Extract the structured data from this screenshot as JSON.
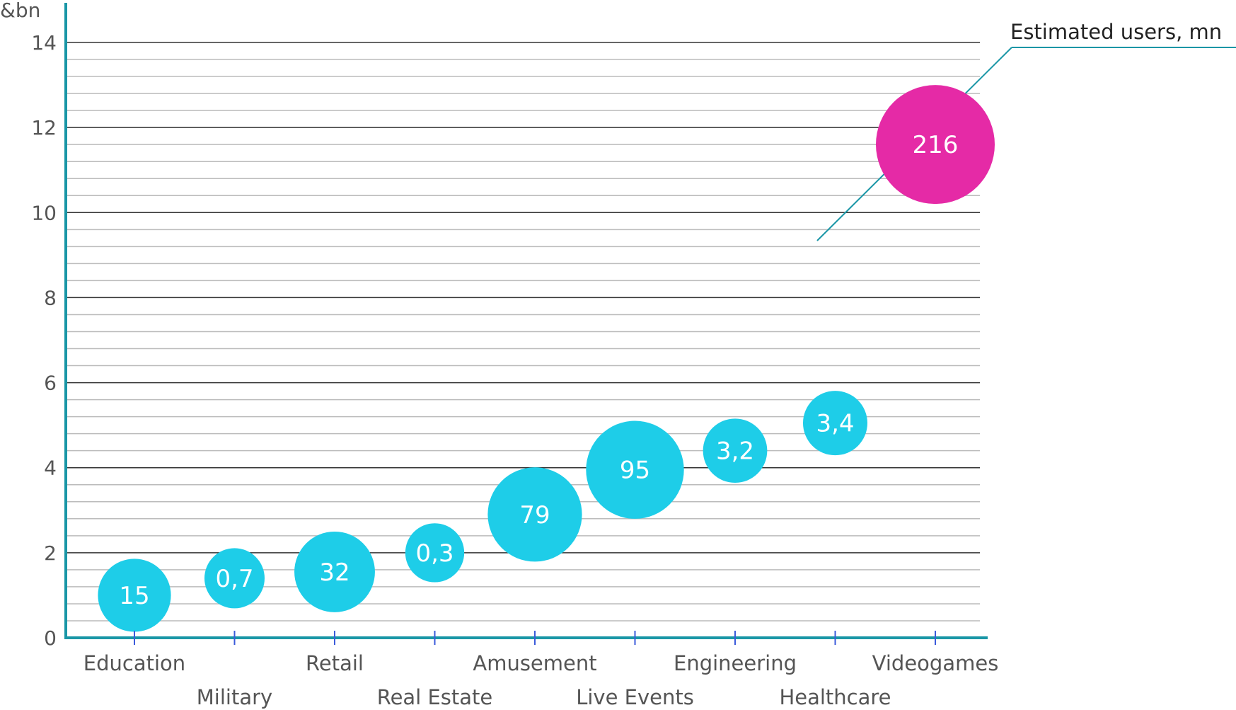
{
  "chart_data": {
    "type": "bubble",
    "title": "",
    "ylabel": "&bn",
    "xlabel": "",
    "ylim": [
      0,
      14
    ],
    "yticks": [
      0,
      2,
      4,
      6,
      8,
      10,
      12,
      14
    ],
    "size_legend": "Estimated users, mn",
    "categories": [
      "Education",
      "Military",
      "Retail",
      "Real Estate",
      "Amusement",
      "Live Events",
      "Engineering",
      "Healthcare",
      "Videogames"
    ],
    "points": [
      {
        "category": "Education",
        "y": 1.0,
        "users": 15,
        "label": "15",
        "highlight": false
      },
      {
        "category": "Military",
        "y": 1.4,
        "users": 0.7,
        "label": "0,7",
        "highlight": false
      },
      {
        "category": "Retail",
        "y": 1.55,
        "users": 32,
        "label": "32",
        "highlight": false
      },
      {
        "category": "Real Estate",
        "y": 2.0,
        "users": 0.3,
        "label": "0,3",
        "highlight": false
      },
      {
        "category": "Amusement",
        "y": 2.9,
        "users": 79,
        "label": "79",
        "highlight": false
      },
      {
        "category": "Live Events",
        "y": 3.95,
        "users": 95,
        "label": "95",
        "highlight": false
      },
      {
        "category": "Engineering",
        "y": 4.4,
        "users": 3.2,
        "label": "3,2",
        "highlight": false
      },
      {
        "category": "Healthcare",
        "y": 5.05,
        "users": 3.4,
        "label": "3,4",
        "highlight": false
      },
      {
        "category": "Videogames",
        "y": 11.6,
        "users": 216,
        "label": "216",
        "highlight": true
      }
    ],
    "grid": true,
    "colors": {
      "bubble": "#1ECDE8",
      "highlight": "#E52AA6",
      "axis": "#1996A6",
      "tick": "#3B5BDB",
      "grid_major": "#333333",
      "grid_minor": "#BBBBBB"
    }
  }
}
